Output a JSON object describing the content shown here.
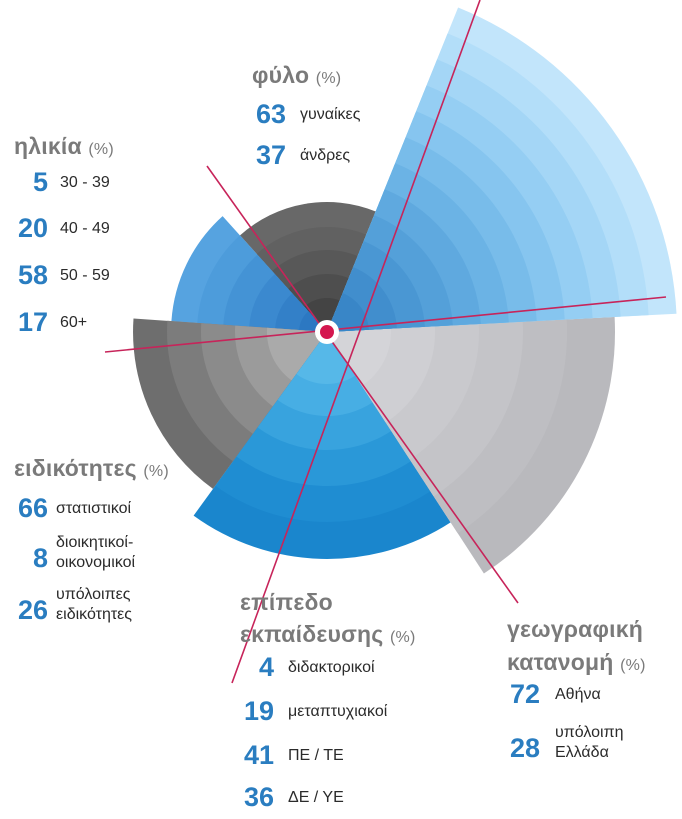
{
  "colors": {
    "line": "#c7245a",
    "accent_blue": "#2a7dc0",
    "heading_gray": "#7a7a7a"
  },
  "pct_label": "(%)",
  "chart_data": {
    "type": "radial",
    "categories": [
      {
        "key": "gender",
        "title": "φύλο",
        "unit": "(%)",
        "items": [
          {
            "value": 63,
            "label": "γυναίκες"
          },
          {
            "value": 37,
            "label": "άνδρες"
          }
        ]
      },
      {
        "key": "age",
        "title": "ηλικία",
        "unit": "(%)",
        "items": [
          {
            "value": 5,
            "label": "30 - 39"
          },
          {
            "value": 20,
            "label": "40 - 49"
          },
          {
            "value": 58,
            "label": "50 - 59"
          },
          {
            "value": 17,
            "label": "60+"
          }
        ]
      },
      {
        "key": "specialty",
        "title": "ειδικότητες",
        "unit": "(%)",
        "items": [
          {
            "value": 66,
            "label": "στατιστικοί"
          },
          {
            "value": 8,
            "label": "διοικητικοί-\nοικονομικοί"
          },
          {
            "value": 26,
            "label": "υπόλοιπες\nειδικότητες"
          }
        ]
      },
      {
        "key": "education",
        "title": "επίπεδο\nεκπαίδευσης",
        "unit": "(%)",
        "items": [
          {
            "value": 4,
            "label": "διδακτορικοί"
          },
          {
            "value": 19,
            "label": "μεταπτυχιακοί"
          },
          {
            "value": 41,
            "label": "ΠΕ / ΤΕ"
          },
          {
            "value": 36,
            "label": "ΔΕ / ΥΕ"
          }
        ]
      },
      {
        "key": "region",
        "title": "γεωγραφική\nκατανομή",
        "unit": "(%)",
        "items": [
          {
            "value": 72,
            "label": "Αθήνα"
          },
          {
            "value": 28,
            "label": "υπόλοιπη\nΕλλάδα"
          }
        ]
      }
    ]
  }
}
